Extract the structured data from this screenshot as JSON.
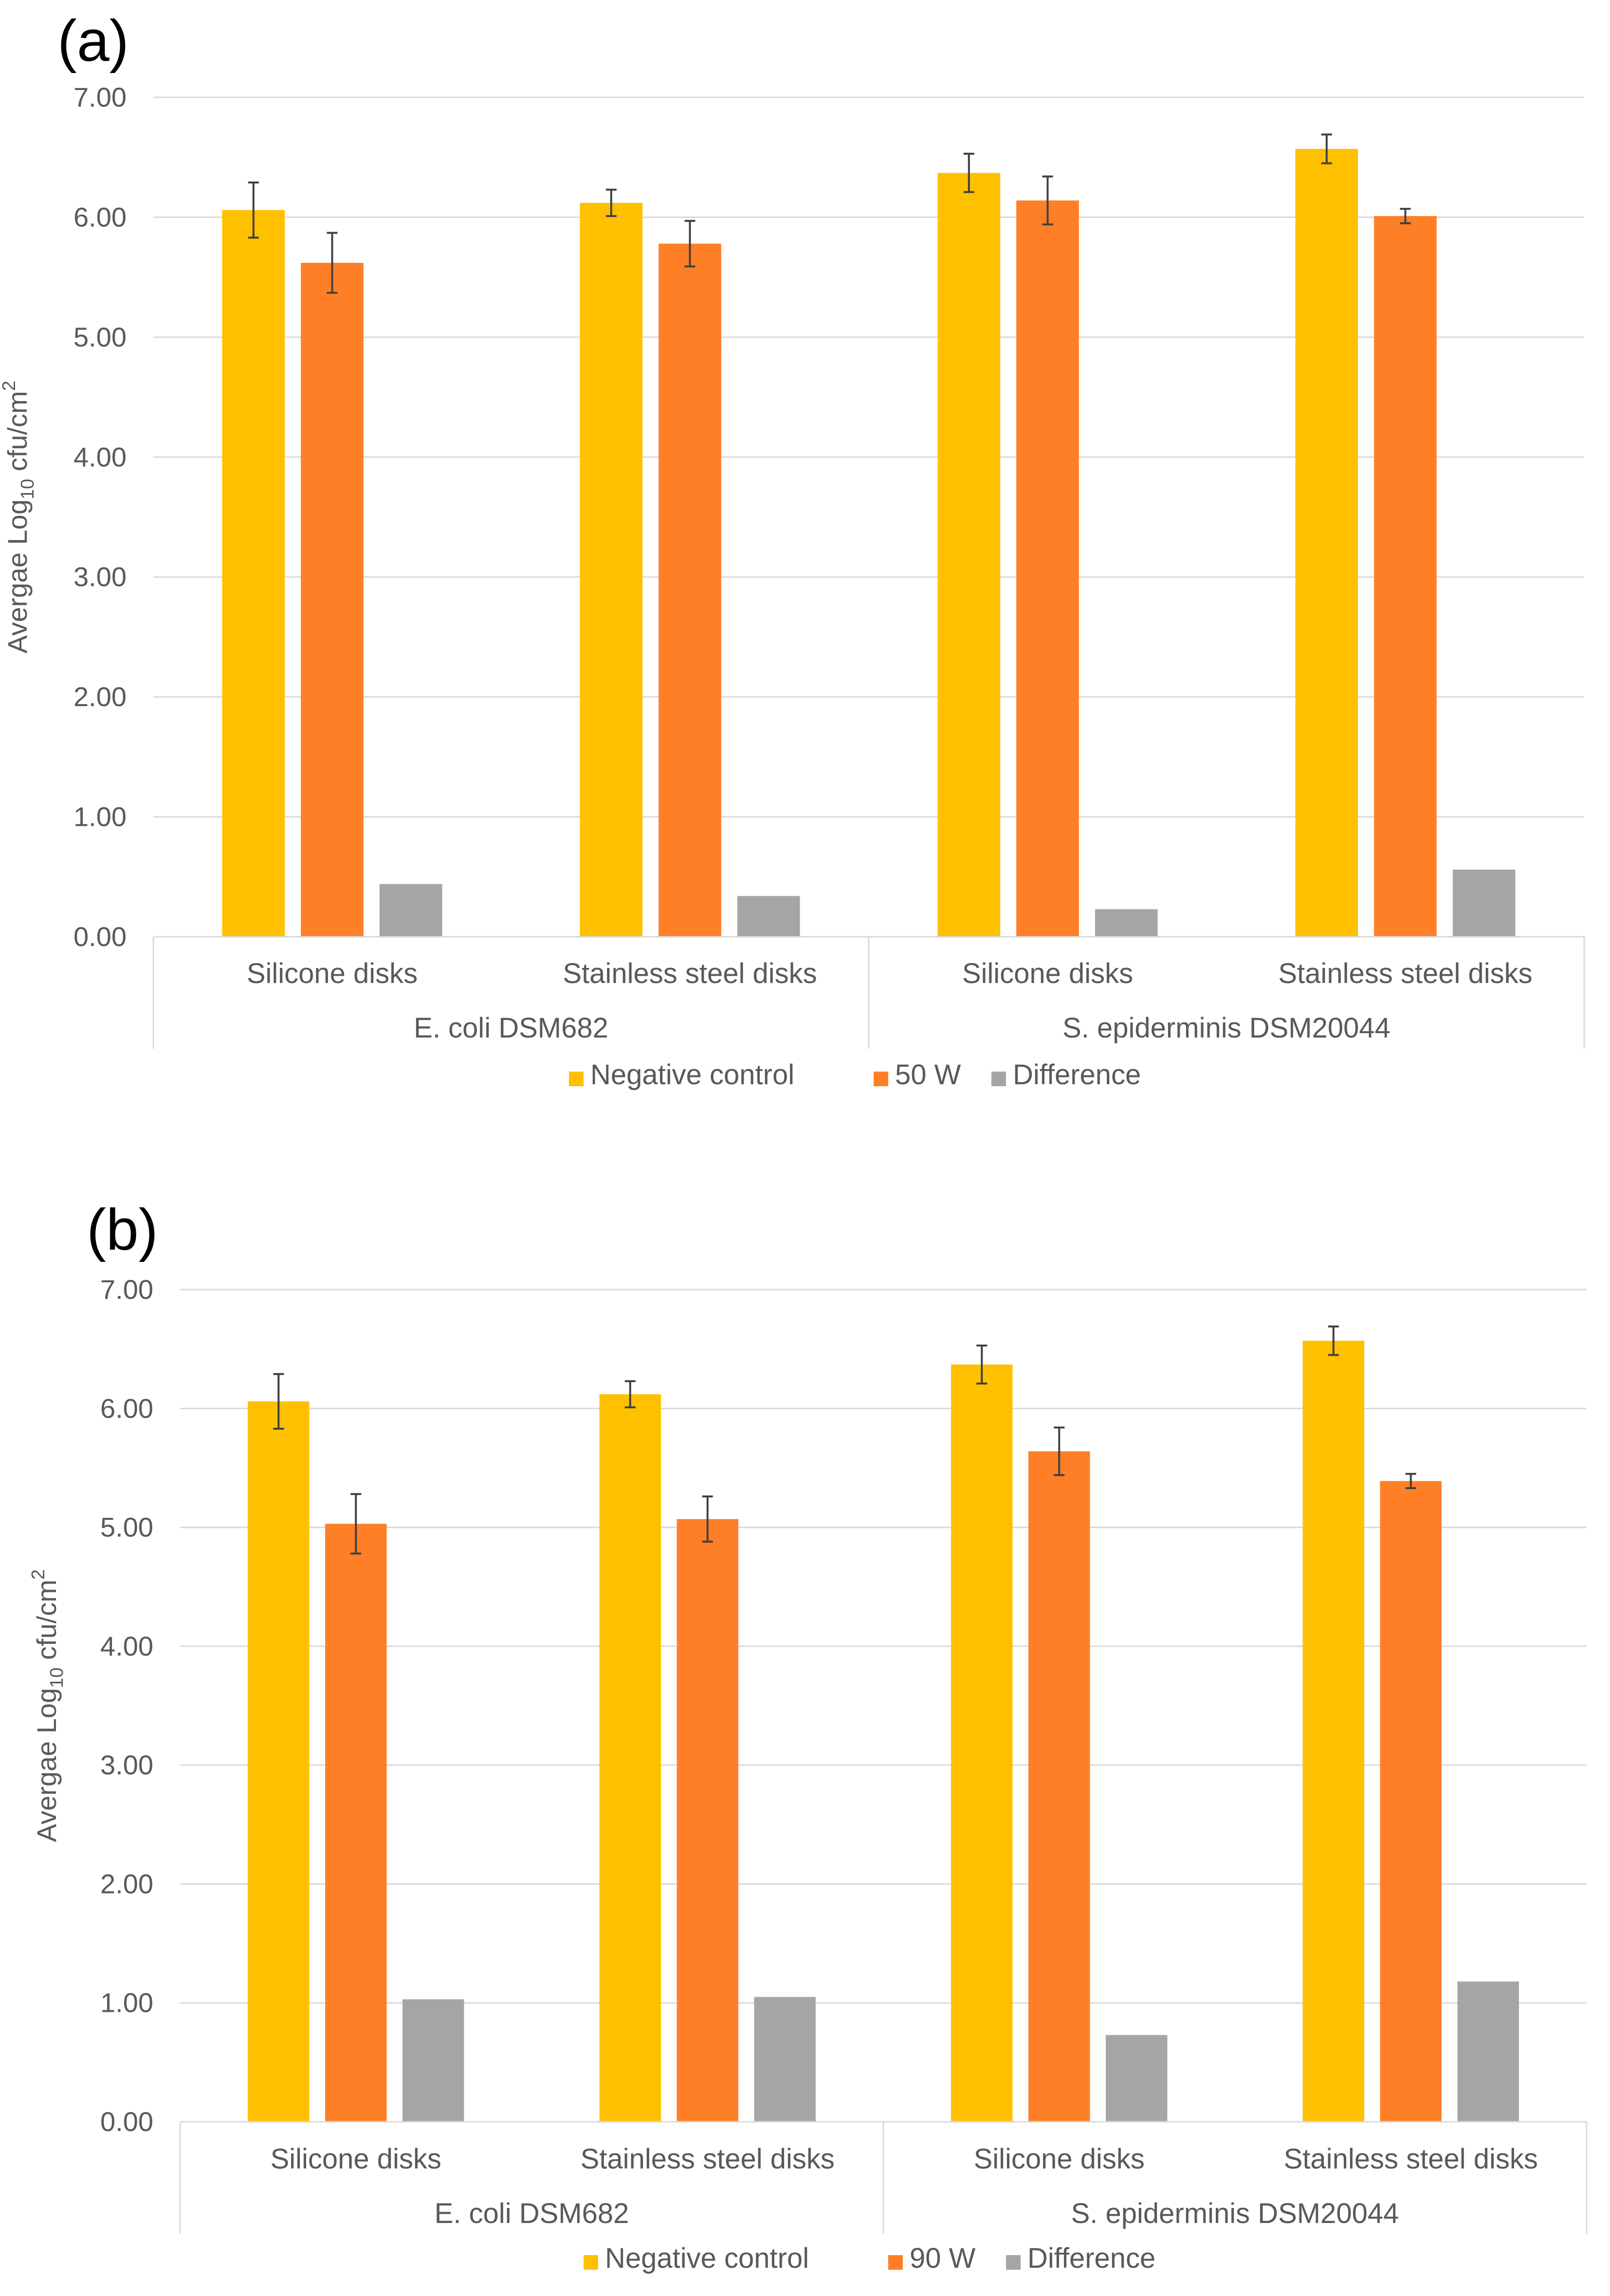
{
  "chart_data": [
    {
      "type": "bar",
      "panel_label": "(a)",
      "ylabel": {
        "main": "Avergae Log",
        "sub": "10",
        "unit": " cfu/cm",
        "sup": "2"
      },
      "ylim": [
        0,
        7
      ],
      "y_ticks": [
        "0.00",
        "1.00",
        "2.00",
        "3.00",
        "4.00",
        "5.00",
        "6.00",
        "7.00"
      ],
      "grid": true,
      "legend_position": "bottom",
      "groups": [
        {
          "name": "E. coli DSM682",
          "categories": [
            "Silicone disks",
            "Stainless steel disks"
          ]
        },
        {
          "name": "S. epiderminis DSM20044",
          "categories": [
            "Silicone disks",
            "Stainless steel disks"
          ]
        }
      ],
      "series": [
        {
          "name": "Negative control",
          "color": "#FFC000",
          "values": [
            6.06,
            6.12,
            6.37,
            6.57
          ],
          "errors": [
            0.23,
            0.11,
            0.16,
            0.12
          ]
        },
        {
          "name": "50 W",
          "color": "#FF7F27",
          "values": [
            5.62,
            5.78,
            6.14,
            6.01
          ],
          "errors": [
            0.25,
            0.19,
            0.2,
            0.06
          ]
        },
        {
          "name": "Difference",
          "color": "#A5A5A5",
          "values": [
            0.44,
            0.34,
            0.23,
            0.56
          ],
          "errors": null
        }
      ]
    },
    {
      "type": "bar",
      "panel_label": "(b)",
      "ylabel": {
        "main": "Avergae Log",
        "sub": "10",
        "unit": " cfu/cm",
        "sup": "2"
      },
      "ylim": [
        0,
        7
      ],
      "y_ticks": [
        "0.00",
        "1.00",
        "2.00",
        "3.00",
        "4.00",
        "5.00",
        "6.00",
        "7.00"
      ],
      "grid": true,
      "legend_position": "bottom",
      "groups": [
        {
          "name": "E. coli DSM682",
          "categories": [
            "Silicone disks",
            "Stainless steel disks"
          ]
        },
        {
          "name": "S. epiderminis DSM20044",
          "categories": [
            "Silicone disks",
            "Stainless steel disks"
          ]
        }
      ],
      "series": [
        {
          "name": "Negative control",
          "color": "#FFC000",
          "values": [
            6.06,
            6.12,
            6.37,
            6.57
          ],
          "errors": [
            0.23,
            0.11,
            0.16,
            0.12
          ]
        },
        {
          "name": "90 W",
          "color": "#FF7F27",
          "values": [
            5.03,
            5.07,
            5.64,
            5.39
          ],
          "errors": [
            0.25,
            0.19,
            0.2,
            0.06
          ]
        },
        {
          "name": "Difference",
          "color": "#A5A5A5",
          "values": [
            1.03,
            1.05,
            0.73,
            1.18
          ],
          "errors": null
        }
      ]
    }
  ]
}
